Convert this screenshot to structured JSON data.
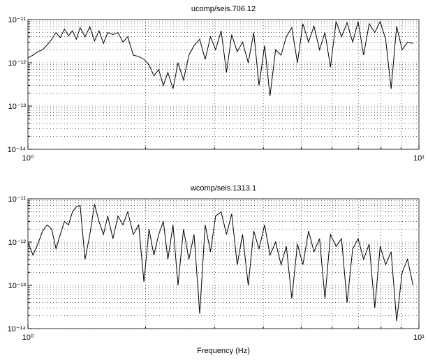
{
  "chart_data": [
    {
      "type": "line",
      "title": "ucomp/seis.706.12",
      "xscale": "log",
      "yscale": "log",
      "grid": true,
      "xlim": [
        1,
        10
      ],
      "xticks": [
        {
          "value": 1,
          "label": "10⁰"
        },
        {
          "value": 10,
          "label": "10¹"
        }
      ],
      "xminorticks": [
        2,
        3,
        4,
        5,
        6,
        7,
        8,
        9
      ],
      "ylim": [
        1e-14,
        1e-11
      ],
      "yticks": [
        {
          "value": 1e-14,
          "label": "10⁻¹⁴"
        },
        {
          "value": 1e-13,
          "label": "10⁻¹³"
        },
        {
          "value": 1e-12,
          "label": "10⁻¹²"
        },
        {
          "value": 1e-11,
          "label": "10⁻¹¹"
        }
      ],
      "yminorticks": [
        2e-14,
        3e-14,
        4e-14,
        5e-14,
        6e-14,
        7e-14,
        8e-14,
        9e-14,
        2e-13,
        3e-13,
        4e-13,
        5e-13,
        6e-13,
        7e-13,
        8e-13,
        9e-13,
        2e-12,
        3e-12,
        4e-12,
        5e-12,
        6e-12,
        7e-12,
        8e-12,
        9e-12
      ],
      "x": [
        1.0,
        1.03,
        1.06,
        1.09,
        1.12,
        1.15,
        1.18,
        1.21,
        1.24,
        1.27,
        1.3,
        1.33,
        1.36,
        1.4,
        1.44,
        1.48,
        1.52,
        1.56,
        1.6,
        1.65,
        1.7,
        1.75,
        1.8,
        1.86,
        1.92,
        1.98,
        2.04,
        2.1,
        2.16,
        2.22,
        2.28,
        2.35,
        2.42,
        2.5,
        2.58,
        2.66,
        2.75,
        2.84,
        2.93,
        3.02,
        3.12,
        3.22,
        3.32,
        3.43,
        3.54,
        3.66,
        3.78,
        3.9,
        4.03,
        4.16,
        4.3,
        4.44,
        4.58,
        4.73,
        4.89,
        5.05,
        5.22,
        5.39,
        5.57,
        5.75,
        5.94,
        6.14,
        6.34,
        6.55,
        6.77,
        6.99,
        7.22,
        7.46,
        7.71,
        7.96,
        8.22,
        8.49,
        8.77,
        9.06,
        9.35,
        9.66
      ],
      "series": [
        {
          "color": "#000000",
          "values": [
            1.3e-12,
            1.5e-12,
            1.8e-12,
            2e-12,
            2.6e-12,
            3.5e-12,
            5e-12,
            3.8e-12,
            6e-12,
            4.2e-12,
            5.5e-12,
            3.5e-12,
            6.5e-12,
            4e-12,
            6.8e-12,
            3.2e-12,
            5.5e-12,
            2.8e-12,
            5e-12,
            4.5e-12,
            5e-12,
            3e-12,
            4e-12,
            1.5e-12,
            1.4e-12,
            1.2e-12,
            9e-13,
            5e-13,
            7e-13,
            3e-13,
            6e-13,
            2.5e-13,
            1e-12,
            4e-13,
            1.5e-12,
            2.5e-12,
            3.5e-12,
            1.2e-12,
            4e-12,
            2e-12,
            5.5e-12,
            6e-13,
            4.5e-12,
            1.8e-12,
            3e-12,
            1e-12,
            5e-12,
            3e-13,
            2.5e-12,
            1.7e-13,
            2e-12,
            1.5e-12,
            4e-12,
            6.5e-12,
            1e-12,
            8e-12,
            3e-12,
            7e-12,
            2e-12,
            5e-12,
            8e-13,
            9e-12,
            4e-12,
            8.5e-12,
            3e-12,
            9e-12,
            1.5e-12,
            8e-12,
            5e-12,
            9e-12,
            3.5e-12,
            2.5e-13,
            7e-12,
            2e-12,
            3e-12,
            2.8e-12
          ]
        }
      ]
    },
    {
      "type": "line",
      "title": "wcomp/seis.1313.1",
      "xlabel": "Frequency (Hz)",
      "xscale": "log",
      "yscale": "log",
      "grid": true,
      "xlim": [
        1,
        10
      ],
      "xticks": [
        {
          "value": 1,
          "label": "10⁰"
        },
        {
          "value": 10,
          "label": "10¹"
        }
      ],
      "xminorticks": [
        2,
        3,
        4,
        5,
        6,
        7,
        8,
        9
      ],
      "ylim": [
        1e-14,
        1e-11
      ],
      "yticks": [
        {
          "value": 1e-14,
          "label": "10⁻¹⁴"
        },
        {
          "value": 1e-13,
          "label": "10⁻¹³"
        },
        {
          "value": 1e-12,
          "label": "10⁻¹²"
        },
        {
          "value": 1e-11,
          "label": "10⁻¹¹"
        }
      ],
      "yminorticks": [
        2e-14,
        3e-14,
        4e-14,
        5e-14,
        6e-14,
        7e-14,
        8e-14,
        9e-14,
        2e-13,
        3e-13,
        4e-13,
        5e-13,
        6e-13,
        7e-13,
        8e-13,
        9e-13,
        2e-12,
        3e-12,
        4e-12,
        5e-12,
        6e-12,
        7e-12,
        8e-12,
        9e-12
      ],
      "x": [
        1.0,
        1.03,
        1.06,
        1.09,
        1.12,
        1.15,
        1.18,
        1.21,
        1.24,
        1.27,
        1.3,
        1.33,
        1.36,
        1.4,
        1.44,
        1.48,
        1.52,
        1.56,
        1.6,
        1.65,
        1.7,
        1.75,
        1.8,
        1.86,
        1.92,
        1.98,
        2.04,
        2.1,
        2.16,
        2.22,
        2.28,
        2.35,
        2.42,
        2.5,
        2.58,
        2.66,
        2.75,
        2.84,
        2.93,
        3.02,
        3.12,
        3.22,
        3.32,
        3.43,
        3.54,
        3.66,
        3.78,
        3.9,
        4.03,
        4.16,
        4.3,
        4.44,
        4.58,
        4.73,
        4.89,
        5.05,
        5.22,
        5.39,
        5.57,
        5.75,
        5.94,
        6.14,
        6.34,
        6.55,
        6.77,
        6.99,
        7.22,
        7.46,
        7.71,
        7.96,
        8.22,
        8.49,
        8.77,
        9.06,
        9.35,
        9.66
      ],
      "series": [
        {
          "color": "#000000",
          "values": [
            1e-12,
            5e-13,
            9e-13,
            1.8e-12,
            2.5e-12,
            2e-12,
            7e-13,
            1.5e-12,
            3e-12,
            2.5e-12,
            5e-12,
            6.5e-12,
            7e-12,
            4e-13,
            1.5e-12,
            7.5e-12,
            3e-12,
            1.5e-12,
            4e-12,
            1.2e-12,
            4e-12,
            2.5e-12,
            5e-12,
            1.5e-12,
            2.5e-12,
            1.2e-13,
            2e-12,
            5e-13,
            1.5e-12,
            3e-12,
            4e-13,
            2.5e-12,
            1e-13,
            2e-12,
            4e-13,
            1.5e-12,
            2.2e-14,
            2.5e-12,
            6e-13,
            4e-12,
            5e-12,
            1.5e-12,
            4.5e-12,
            3e-13,
            1.5e-12,
            1e-13,
            1.8e-12,
            7e-13,
            2.5e-12,
            5e-13,
            1e-12,
            3e-13,
            8e-13,
            5e-14,
            9e-13,
            3e-13,
            1.8e-12,
            6e-13,
            1.2e-12,
            5e-14,
            1.5e-12,
            8e-13,
            1.2e-12,
            4e-14,
            7e-13,
            1.2e-12,
            4e-13,
            9e-13,
            3e-14,
            8e-13,
            3e-13,
            6e-13,
            1.5e-14,
            2e-13,
            4e-13,
            1e-13
          ]
        }
      ]
    }
  ]
}
